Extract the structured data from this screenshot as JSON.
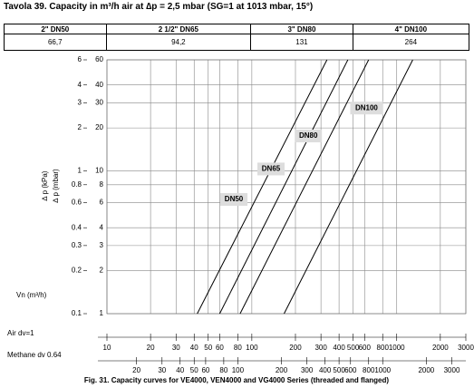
{
  "header": {
    "title": "Tavola 39. Capacity in m³/h air at ∆p = 2,5 mbar (SG=1 at 1013 mbar, 15°)"
  },
  "table": {
    "headers": [
      "2\" DN50",
      "2 1/2\" DN65",
      "3\" DN80",
      "4\" DN100"
    ],
    "rows": [
      [
        "66,7",
        "94,2",
        "131",
        "264"
      ]
    ]
  },
  "chart_data": {
    "type": "line",
    "log_scale": true,
    "grid": true,
    "y_label": "∆ p (mbar)",
    "y2_label": "∆ p (kPa)",
    "x_label": "Vn (m³/h)",
    "x_axis_label": "Air  dv=1",
    "x2_axis_label": "Methane dv 0.64",
    "caption": "Fig. 31. Capacity curves for VE4000, VEN4000 and VG4000 Series (threaded and flanged)",
    "ylim": [
      1,
      60
    ],
    "yticks": [
      1,
      2,
      3,
      4,
      6,
      8,
      10,
      20,
      30,
      40,
      60
    ],
    "y2lim": [
      0.1,
      6
    ],
    "y2ticks": [
      0.1,
      0.2,
      0.3,
      0.4,
      0.6,
      0.8,
      1,
      2,
      3,
      4,
      6
    ],
    "xlim": [
      10,
      3000
    ],
    "xticks": [
      10,
      20,
      30,
      40,
      50,
      60,
      80,
      100,
      200,
      300,
      400,
      500,
      600,
      800,
      1000,
      2000,
      3000
    ],
    "x2lim": [
      12.5,
      3750
    ],
    "x2ticks": [
      20,
      30,
      40,
      50,
      60,
      80,
      100,
      200,
      300,
      400,
      500,
      600,
      800,
      1000,
      2000,
      3000
    ],
    "color": "#000000",
    "series": [
      {
        "name": "DN50",
        "x": [
          42,
          330
        ],
        "values": [
          1,
          60
        ]
      },
      {
        "name": "DN65",
        "x": [
          60,
          460
        ],
        "values": [
          1,
          60
        ]
      },
      {
        "name": "DN80",
        "x": [
          83,
          640
        ],
        "values": [
          1,
          60
        ]
      },
      {
        "name": "DN100",
        "x": [
          167,
          1290
        ],
        "values": [
          1,
          60
        ]
      }
    ]
  }
}
